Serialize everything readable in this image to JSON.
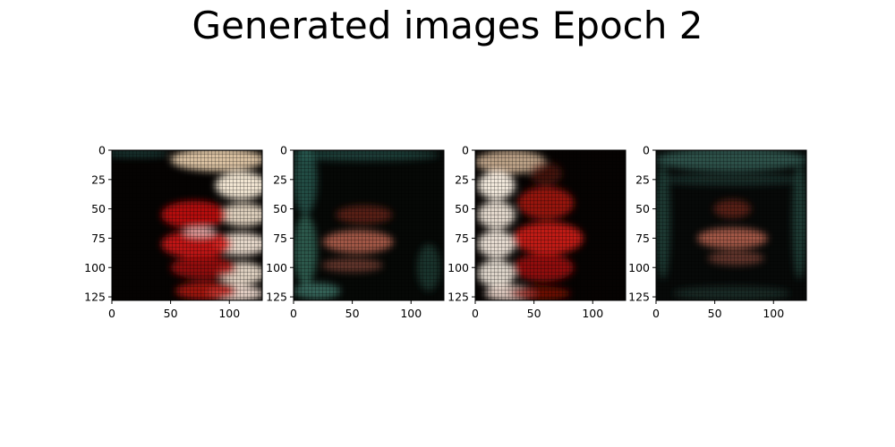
{
  "title": "Generated images Epoch 2",
  "axis": {
    "image_size": 128,
    "x_ticks": [
      0,
      50,
      100
    ],
    "y_ticks": [
      0,
      25,
      50,
      75,
      100,
      125
    ]
  },
  "panels": [
    {
      "name": "generated-image-1",
      "base": "#050302",
      "blobs": [
        {
          "cx": 90,
          "cy": 8,
          "rx": 40,
          "ry": 10,
          "c": "#f2d6b4",
          "o": 0.9
        },
        {
          "cx": 110,
          "cy": 30,
          "rx": 22,
          "ry": 12,
          "c": "#fff2de",
          "o": 0.95
        },
        {
          "cx": 112,
          "cy": 55,
          "rx": 20,
          "ry": 10,
          "c": "#f5e6d0",
          "o": 0.9
        },
        {
          "cx": 110,
          "cy": 80,
          "rx": 22,
          "ry": 10,
          "c": "#fff0e0",
          "o": 0.9
        },
        {
          "cx": 110,
          "cy": 105,
          "rx": 20,
          "ry": 10,
          "c": "#f7e8d6",
          "o": 0.9
        },
        {
          "cx": 105,
          "cy": 122,
          "rx": 24,
          "ry": 7,
          "c": "#ffe9dd",
          "o": 0.9
        },
        {
          "cx": 70,
          "cy": 55,
          "rx": 28,
          "ry": 12,
          "c": "#c8120e",
          "o": 0.9
        },
        {
          "cx": 72,
          "cy": 80,
          "rx": 30,
          "ry": 12,
          "c": "#d41a14",
          "o": 0.9
        },
        {
          "cx": 78,
          "cy": 100,
          "rx": 28,
          "ry": 10,
          "c": "#a80c0a",
          "o": 0.85
        },
        {
          "cx": 80,
          "cy": 120,
          "rx": 26,
          "ry": 8,
          "c": "#b8160f",
          "o": 0.85
        },
        {
          "cx": 75,
          "cy": 70,
          "rx": 14,
          "ry": 4,
          "c": "#ffffff",
          "o": 0.6
        },
        {
          "cx": 20,
          "cy": 3,
          "rx": 30,
          "ry": 3,
          "c": "#2e6a62",
          "o": 0.6
        }
      ]
    },
    {
      "name": "generated-image-2",
      "base": "#060806",
      "blobs": [
        {
          "cx": 60,
          "cy": 4,
          "rx": 64,
          "ry": 5,
          "c": "#2a5a52",
          "o": 0.7
        },
        {
          "cx": 10,
          "cy": 25,
          "rx": 10,
          "ry": 30,
          "c": "#2c6a5e",
          "o": 0.7
        },
        {
          "cx": 10,
          "cy": 85,
          "rx": 10,
          "ry": 30,
          "c": "#3a7a6a",
          "o": 0.7
        },
        {
          "cx": 20,
          "cy": 120,
          "rx": 20,
          "ry": 7,
          "c": "#4a8a7c",
          "o": 0.7
        },
        {
          "cx": 60,
          "cy": 55,
          "rx": 24,
          "ry": 8,
          "c": "#7a2a1a",
          "o": 0.7
        },
        {
          "cx": 55,
          "cy": 78,
          "rx": 30,
          "ry": 10,
          "c": "#c86a55",
          "o": 0.8
        },
        {
          "cx": 50,
          "cy": 98,
          "rx": 26,
          "ry": 6,
          "c": "#8a4a3a",
          "o": 0.7
        },
        {
          "cx": 115,
          "cy": 100,
          "rx": 10,
          "ry": 20,
          "c": "#244e46",
          "o": 0.6
        }
      ]
    },
    {
      "name": "generated-image-3",
      "base": "#060302",
      "blobs": [
        {
          "cx": 30,
          "cy": 10,
          "rx": 30,
          "ry": 10,
          "c": "#e8c8a8",
          "o": 0.8
        },
        {
          "cx": 18,
          "cy": 30,
          "rx": 16,
          "ry": 12,
          "c": "#fff6e8",
          "o": 0.95
        },
        {
          "cx": 18,
          "cy": 55,
          "rx": 16,
          "ry": 12,
          "c": "#fbf0e2",
          "o": 0.9
        },
        {
          "cx": 18,
          "cy": 80,
          "rx": 16,
          "ry": 12,
          "c": "#fff4e8",
          "o": 0.9
        },
        {
          "cx": 18,
          "cy": 105,
          "rx": 16,
          "ry": 12,
          "c": "#f5ece0",
          "o": 0.9
        },
        {
          "cx": 30,
          "cy": 122,
          "rx": 22,
          "ry": 7,
          "c": "#ffe8dc",
          "o": 0.85
        },
        {
          "cx": 60,
          "cy": 45,
          "rx": 24,
          "ry": 14,
          "c": "#b0140e",
          "o": 0.85
        },
        {
          "cx": 62,
          "cy": 75,
          "rx": 30,
          "ry": 14,
          "c": "#d41c14",
          "o": 0.9
        },
        {
          "cx": 58,
          "cy": 100,
          "rx": 26,
          "ry": 12,
          "c": "#a80e0a",
          "o": 0.85
        },
        {
          "cx": 55,
          "cy": 122,
          "rx": 26,
          "ry": 6,
          "c": "#8a0c08",
          "o": 0.8
        },
        {
          "cx": 60,
          "cy": 20,
          "rx": 14,
          "ry": 10,
          "c": "#6a1a10",
          "o": 0.6
        }
      ]
    },
    {
      "name": "generated-image-4",
      "base": "#070908",
      "blobs": [
        {
          "cx": 64,
          "cy": 8,
          "rx": 64,
          "ry": 10,
          "c": "#3a6a60",
          "o": 0.75
        },
        {
          "cx": 64,
          "cy": 25,
          "rx": 60,
          "ry": 5,
          "c": "#2a5048",
          "o": 0.55
        },
        {
          "cx": 6,
          "cy": 60,
          "rx": 6,
          "ry": 50,
          "c": "#2e5e54",
          "o": 0.6
        },
        {
          "cx": 122,
          "cy": 60,
          "rx": 6,
          "ry": 50,
          "c": "#2e5e54",
          "o": 0.6
        },
        {
          "cx": 65,
          "cy": 50,
          "rx": 16,
          "ry": 8,
          "c": "#7a2a1a",
          "o": 0.7
        },
        {
          "cx": 65,
          "cy": 75,
          "rx": 30,
          "ry": 9,
          "c": "#c86a55",
          "o": 0.8
        },
        {
          "cx": 68,
          "cy": 92,
          "rx": 24,
          "ry": 6,
          "c": "#8a4a3a",
          "o": 0.7
        },
        {
          "cx": 64,
          "cy": 122,
          "rx": 50,
          "ry": 6,
          "c": "#2a4a44",
          "o": 0.5
        }
      ]
    }
  ]
}
